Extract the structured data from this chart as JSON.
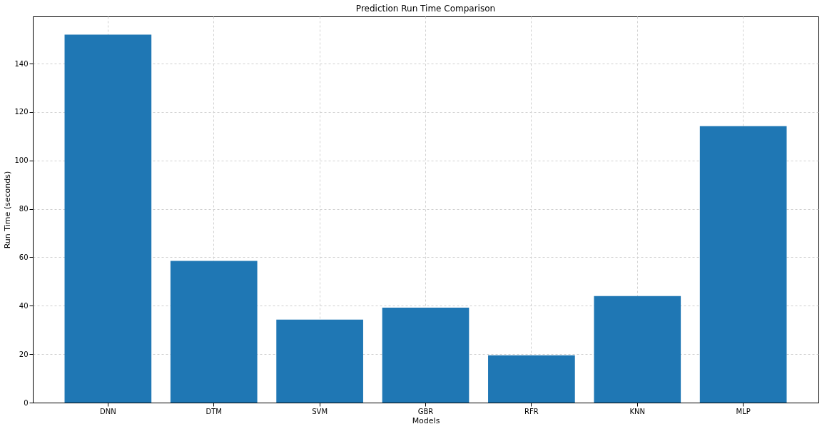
{
  "chart_data": {
    "type": "bar",
    "title": "Prediction Run Time Comparison",
    "xlabel": "Models",
    "ylabel": "Run Time (seconds)",
    "categories": [
      "DNN",
      "DTM",
      "SVM",
      "GBR",
      "RFR",
      "KNN",
      "MLP"
    ],
    "values": [
      152,
      58.5,
      34.3,
      39.2,
      19.5,
      44,
      114.2
    ],
    "color": "#1f77b4",
    "ylim": [
      0,
      159.5
    ],
    "yticks": [
      0,
      20,
      40,
      60,
      80,
      100,
      120,
      140
    ],
    "grid": true
  }
}
